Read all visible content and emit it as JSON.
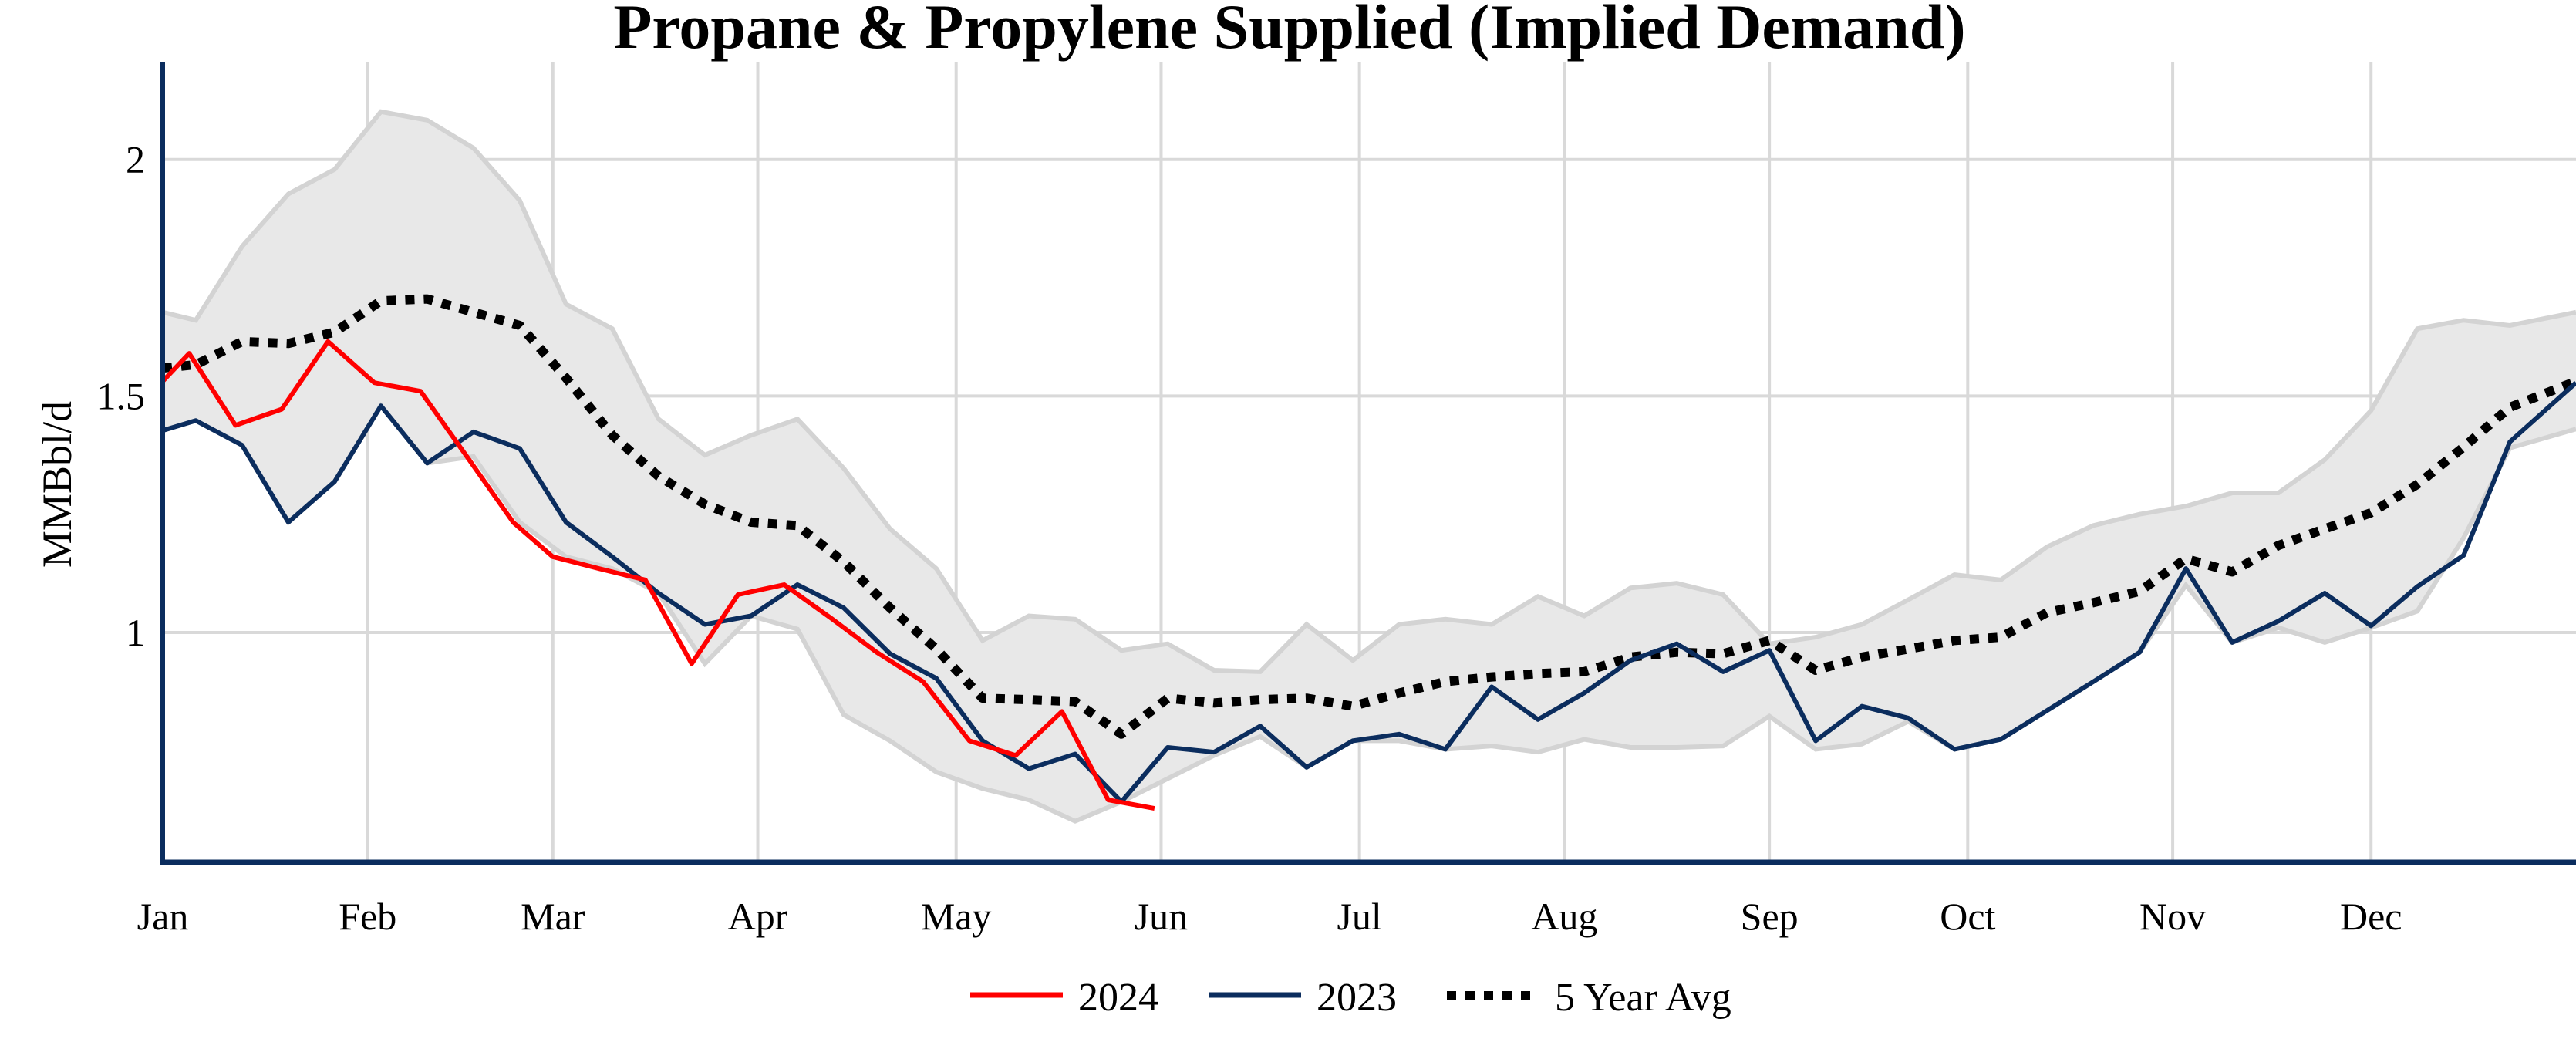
{
  "chart_data": {
    "type": "line",
    "title": "Propane & Propylene Supplied (Implied Demand)",
    "xlabel": "",
    "ylabel": "MMBbl/d",
    "x_ticks": [
      "Jan",
      "Feb",
      "Mar",
      "Apr",
      "May",
      "Jun",
      "Jul",
      "Aug",
      "Sep",
      "Oct",
      "Nov",
      "Dec"
    ],
    "y_ticks": [
      "1",
      "1.5",
      "2"
    ],
    "y_tick_values": [
      1,
      1.5,
      2
    ],
    "ylim": [
      0.514,
      2.205
    ],
    "xlim": [
      "01-01",
      "12-31"
    ],
    "grid": true,
    "legend_position": "bottom",
    "colors": {
      "2024": "#ff0000",
      "2023": "#0b2d5e",
      "avg": "#000000",
      "band_fill": "#e8e8e8",
      "band_edge": "#d3d3d3",
      "axis": "#0b2d5e",
      "grid": "#d9d9d9"
    },
    "dates": [
      "01-01",
      "01-06",
      "01-13",
      "01-20",
      "01-27",
      "02-03",
      "02-10",
      "02-17",
      "02-24",
      "03-03",
      "03-10",
      "03-17",
      "03-24",
      "03-31",
      "04-07",
      "04-14",
      "04-21",
      "04-28",
      "05-05",
      "05-12",
      "05-19",
      "05-26",
      "06-02",
      "06-09",
      "06-16",
      "06-23",
      "06-30",
      "07-07",
      "07-14",
      "07-21",
      "07-28",
      "08-04",
      "08-11",
      "08-18",
      "08-25",
      "09-01",
      "09-08",
      "09-15",
      "09-22",
      "09-29",
      "10-06",
      "10-13",
      "10-20",
      "10-27",
      "11-03",
      "11-10",
      "11-17",
      "11-24",
      "12-01",
      "12-08",
      "12-15",
      "12-22",
      "12-29"
    ],
    "range_band": {
      "upper": [
        1.677,
        1.66,
        1.816,
        1.927,
        1.979,
        2.101,
        2.083,
        2.024,
        1.913,
        1.694,
        1.642,
        1.451,
        1.375,
        1.417,
        1.451,
        1.347,
        1.219,
        1.135,
        0.983,
        1.035,
        1.028,
        0.962,
        0.976,
        0.92,
        0.917,
        1.017,
        0.941,
        1.017,
        1.028,
        1.017,
        1.076,
        1.035,
        1.094,
        1.104,
        1.08,
        0.976,
        0.99,
        1.017,
        1.069,
        1.122,
        1.111,
        1.181,
        1.226,
        1.25,
        1.267,
        1.295,
        1.295,
        1.365,
        1.469,
        1.642,
        1.66,
        1.649,
        1.677
      ],
      "lower": [
        1.427,
        1.448,
        1.396,
        1.233,
        1.319,
        1.479,
        1.358,
        1.372,
        1.233,
        1.16,
        1.135,
        1.083,
        0.934,
        1.035,
        1.007,
        0.826,
        0.771,
        0.705,
        0.67,
        0.646,
        0.601,
        0.642,
        0.691,
        0.74,
        0.78,
        0.715,
        0.771,
        0.771,
        0.753,
        0.76,
        0.747,
        0.774,
        0.757,
        0.757,
        0.76,
        0.823,
        0.753,
        0.764,
        0.812,
        0.753,
        0.774,
        0.835,
        0.896,
        0.958,
        1.1,
        0.979,
        1.01,
        0.979,
        1.01,
        1.045,
        1.2,
        1.39,
        1.43
      ]
    },
    "series": [
      {
        "name": "2024",
        "x": [
          "01-01",
          "01-05",
          "01-12",
          "01-19",
          "01-26",
          "02-02",
          "02-09",
          "02-16",
          "02-23",
          "03-01",
          "03-08",
          "03-15",
          "03-22",
          "03-29",
          "04-05",
          "04-12",
          "04-19",
          "04-26",
          "05-03",
          "05-10",
          "05-17",
          "05-24",
          "05-31"
        ],
        "values": [
          1.531,
          1.59,
          1.438,
          1.472,
          1.615,
          1.528,
          1.51,
          1.372,
          1.233,
          1.16,
          1.135,
          1.111,
          0.934,
          1.08,
          1.101,
          1.031,
          0.958,
          0.896,
          0.771,
          0.74,
          0.833,
          0.646,
          0.628
        ]
      },
      {
        "name": "2023",
        "values": [
          1.427,
          1.448,
          1.396,
          1.233,
          1.319,
          1.479,
          1.358,
          1.424,
          1.389,
          1.233,
          1.16,
          1.083,
          1.017,
          1.035,
          1.101,
          1.052,
          0.955,
          0.903,
          0.771,
          0.712,
          0.743,
          0.642,
          0.757,
          0.747,
          0.802,
          0.715,
          0.771,
          0.785,
          0.753,
          0.885,
          0.816,
          0.872,
          0.941,
          0.976,
          0.917,
          0.962,
          0.771,
          0.844,
          0.819,
          0.753,
          0.774,
          0.835,
          0.896,
          0.958,
          1.135,
          0.979,
          1.024,
          1.083,
          1.014,
          1.097,
          1.163,
          1.403,
          1.528
        ]
      },
      {
        "name": "5 Year Avg",
        "values": [
          1.559,
          1.566,
          1.615,
          1.611,
          1.635,
          1.701,
          1.705,
          1.677,
          1.649,
          1.538,
          1.417,
          1.33,
          1.271,
          1.233,
          1.226,
          1.149,
          1.052,
          0.965,
          0.861,
          0.858,
          0.854,
          0.785,
          0.861,
          0.851,
          0.858,
          0.861,
          0.844,
          0.872,
          0.896,
          0.906,
          0.913,
          0.917,
          0.948,
          0.958,
          0.955,
          0.983,
          0.92,
          0.948,
          0.965,
          0.983,
          0.99,
          1.042,
          1.063,
          1.087,
          1.156,
          1.128,
          1.184,
          1.219,
          1.253,
          1.313,
          1.392,
          1.476,
          1.531
        ]
      }
    ]
  }
}
